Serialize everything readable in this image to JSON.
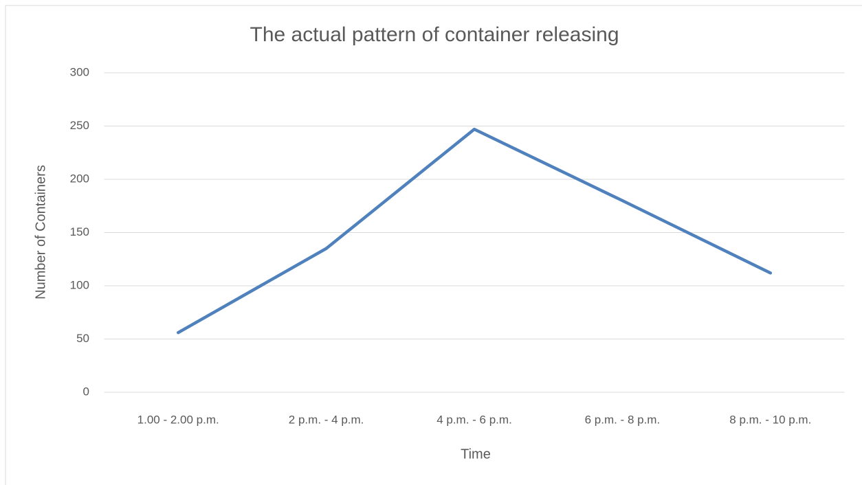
{
  "chart_data": {
    "type": "line",
    "title": "The actual pattern of container releasing",
    "x_label": "Time",
    "y_label": "Number of Containers",
    "categories": [
      "1.00 - 2.00 p.m.",
      "2 p.m. - 4 p.m.",
      "4 p.m. - 6 p.m.",
      "6 p.m. - 8 p.m.",
      "8 p.m. - 10 p.m."
    ],
    "series": [
      {
        "name": "Number of Containers",
        "color": "#4f81bd",
        "values": [
          56,
          135,
          247,
          180,
          112
        ]
      }
    ],
    "ylim": [
      0,
      300
    ],
    "yticks": [
      0,
      50,
      100,
      150,
      200,
      250,
      300
    ],
    "grid": true
  }
}
